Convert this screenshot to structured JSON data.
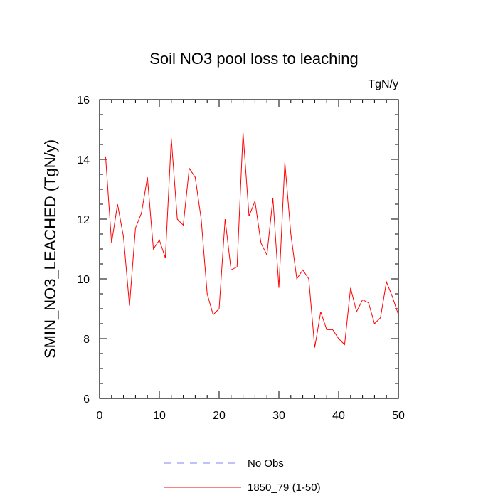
{
  "chart_data": {
    "type": "line",
    "title": "Soil NO3 pool loss to leaching",
    "units_label": "TgN/y",
    "xlabel": "",
    "ylabel": "SMIN_NO3_LEACHED  (TgN/y)",
    "xlim": [
      0,
      50
    ],
    "ylim": [
      6,
      16
    ],
    "x_ticks": [
      "0",
      "10",
      "20",
      "30",
      "40",
      "50"
    ],
    "y_ticks": [
      "6",
      "8",
      "10",
      "12",
      "14",
      "16"
    ],
    "legend_position": "bottom",
    "series": [
      {
        "name": "No Obs",
        "color": "#8080ff",
        "dash": "dashed",
        "x": [],
        "values": []
      },
      {
        "name": "1850_79 (1-50)",
        "color": "#ff0000",
        "dash": "solid",
        "x": [
          1,
          2,
          3,
          4,
          5,
          6,
          7,
          8,
          9,
          10,
          11,
          12,
          13,
          14,
          15,
          16,
          17,
          18,
          19,
          20,
          21,
          22,
          23,
          24,
          25,
          26,
          27,
          28,
          29,
          30,
          31,
          32,
          33,
          34,
          35,
          36,
          37,
          38,
          39,
          40,
          41,
          42,
          43,
          44,
          45,
          46,
          47,
          48,
          49,
          50
        ],
        "values": [
          14.1,
          11.2,
          12.5,
          11.4,
          9.1,
          11.7,
          12.2,
          13.4,
          11.0,
          11.3,
          10.7,
          14.7,
          12.0,
          11.8,
          13.7,
          13.4,
          12.0,
          9.5,
          8.8,
          9.0,
          12.0,
          10.3,
          10.4,
          14.9,
          12.1,
          12.6,
          11.2,
          10.8,
          12.7,
          9.7,
          13.9,
          11.5,
          10.0,
          10.3,
          10.0,
          7.7,
          8.9,
          8.3,
          8.3,
          8.0,
          7.8,
          9.7,
          8.9,
          9.3,
          9.2,
          8.5,
          8.7,
          9.9,
          9.4,
          8.8
        ]
      }
    ]
  }
}
